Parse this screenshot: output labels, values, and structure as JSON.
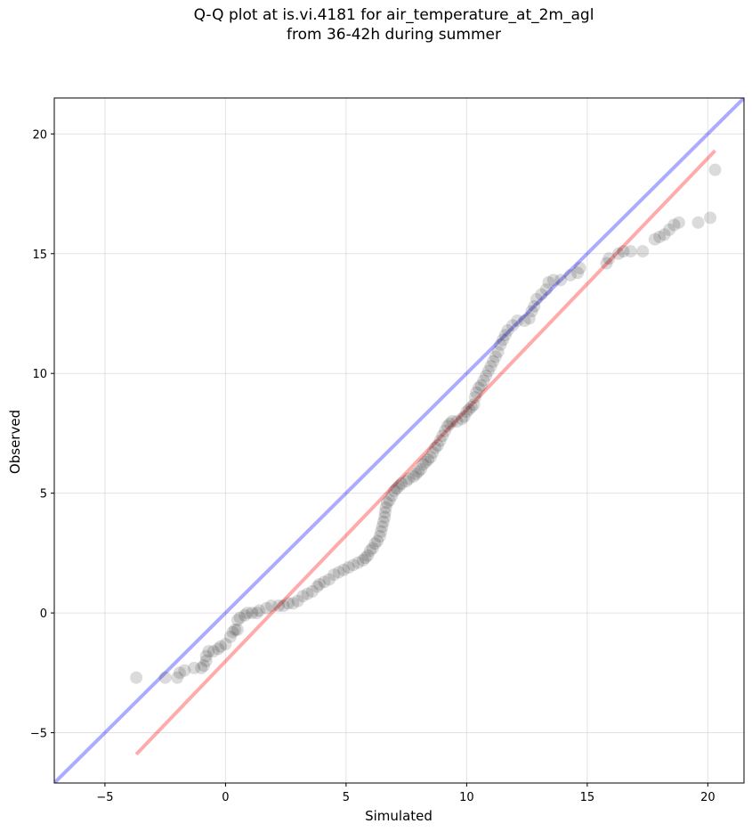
{
  "chart_data": {
    "type": "scatter",
    "title_line1": "Q-Q plot at is.vi.4181 for air_temperature_at_2m_agl",
    "title_line2": "from 36-42h during summer",
    "xlabel": "Simulated",
    "ylabel": "Observed",
    "xlim": [
      -7.1,
      21.5
    ],
    "ylim": [
      -7.1,
      21.5
    ],
    "xticks": [
      -5,
      0,
      5,
      10,
      15,
      20
    ],
    "yticks": [
      -5,
      0,
      5,
      10,
      15,
      20
    ],
    "xtick_labels": [
      "−5",
      "0",
      "5",
      "10",
      "15",
      "20"
    ],
    "ytick_labels": [
      "−5",
      "0",
      "5",
      "10",
      "15",
      "20"
    ],
    "grid": true,
    "identity_line_color": "#0000ff",
    "fit_line_color": "#ff0000",
    "point_color": "#000000",
    "fit_line": {
      "x": [
        -3.7,
        20.3
      ],
      "y": [
        -5.9,
        19.3
      ]
    },
    "points": [
      [
        -3.7,
        -2.7
      ],
      [
        -2.5,
        -2.7
      ],
      [
        -2.0,
        -2.7
      ],
      [
        -1.9,
        -2.5
      ],
      [
        -1.7,
        -2.4
      ],
      [
        -1.3,
        -2.3
      ],
      [
        -1.0,
        -2.3
      ],
      [
        -0.9,
        -2.2
      ],
      [
        -0.8,
        -2.0
      ],
      [
        -0.8,
        -1.8
      ],
      [
        -0.7,
        -1.6
      ],
      [
        -0.5,
        -1.6
      ],
      [
        -0.3,
        -1.5
      ],
      [
        -0.2,
        -1.4
      ],
      [
        0.0,
        -1.3
      ],
      [
        0.2,
        -1.0
      ],
      [
        0.3,
        -0.8
      ],
      [
        0.4,
        -0.7
      ],
      [
        0.5,
        -0.7
      ],
      [
        0.5,
        -0.3
      ],
      [
        0.6,
        -0.2
      ],
      [
        0.8,
        -0.1
      ],
      [
        0.9,
        0.0
      ],
      [
        1.1,
        0.0
      ],
      [
        1.3,
        0.0
      ],
      [
        1.4,
        0.1
      ],
      [
        1.7,
        0.2
      ],
      [
        1.9,
        0.3
      ],
      [
        2.2,
        0.3
      ],
      [
        2.4,
        0.3
      ],
      [
        2.6,
        0.4
      ],
      [
        2.8,
        0.4
      ],
      [
        3.0,
        0.5
      ],
      [
        3.2,
        0.7
      ],
      [
        3.4,
        0.8
      ],
      [
        3.6,
        0.9
      ],
      [
        3.8,
        1.1
      ],
      [
        3.9,
        1.2
      ],
      [
        4.1,
        1.3
      ],
      [
        4.3,
        1.4
      ],
      [
        4.5,
        1.6
      ],
      [
        4.7,
        1.7
      ],
      [
        4.9,
        1.8
      ],
      [
        5.1,
        1.9
      ],
      [
        5.3,
        2.0
      ],
      [
        5.5,
        2.1
      ],
      [
        5.7,
        2.2
      ],
      [
        5.8,
        2.3
      ],
      [
        5.9,
        2.4
      ],
      [
        6.0,
        2.6
      ],
      [
        6.1,
        2.7
      ],
      [
        6.2,
        2.9
      ],
      [
        6.3,
        3.0
      ],
      [
        6.4,
        3.2
      ],
      [
        6.45,
        3.4
      ],
      [
        6.5,
        3.6
      ],
      [
        6.55,
        3.8
      ],
      [
        6.6,
        4.0
      ],
      [
        6.62,
        4.2
      ],
      [
        6.65,
        4.4
      ],
      [
        6.7,
        4.6
      ],
      [
        6.8,
        4.7
      ],
      [
        6.9,
        4.9
      ],
      [
        7.0,
        5.1
      ],
      [
        7.1,
        5.2
      ],
      [
        7.2,
        5.3
      ],
      [
        7.3,
        5.4
      ],
      [
        7.5,
        5.5
      ],
      [
        7.6,
        5.6
      ],
      [
        7.8,
        5.7
      ],
      [
        7.9,
        5.8
      ],
      [
        8.0,
        5.9
      ],
      [
        8.1,
        6.0
      ],
      [
        8.2,
        6.2
      ],
      [
        8.3,
        6.3
      ],
      [
        8.4,
        6.4
      ],
      [
        8.5,
        6.5
      ],
      [
        8.6,
        6.7
      ],
      [
        8.7,
        6.9
      ],
      [
        8.8,
        7.0
      ],
      [
        8.9,
        7.2
      ],
      [
        9.0,
        7.4
      ],
      [
        9.1,
        7.6
      ],
      [
        9.2,
        7.8
      ],
      [
        9.3,
        7.9
      ],
      [
        9.4,
        8.0
      ],
      [
        9.6,
        8.0
      ],
      [
        9.8,
        8.1
      ],
      [
        9.9,
        8.2
      ],
      [
        10.0,
        8.4
      ],
      [
        10.1,
        8.5
      ],
      [
        10.2,
        8.6
      ],
      [
        10.3,
        8.7
      ],
      [
        10.35,
        9.0
      ],
      [
        10.4,
        9.2
      ],
      [
        10.5,
        9.4
      ],
      [
        10.6,
        9.5
      ],
      [
        10.7,
        9.7
      ],
      [
        10.8,
        9.9
      ],
      [
        10.9,
        10.1
      ],
      [
        11.0,
        10.3
      ],
      [
        11.1,
        10.5
      ],
      [
        11.2,
        10.7
      ],
      [
        11.3,
        10.9
      ],
      [
        11.4,
        11.2
      ],
      [
        11.5,
        11.4
      ],
      [
        11.6,
        11.6
      ],
      [
        11.7,
        11.8
      ],
      [
        11.9,
        12.0
      ],
      [
        12.1,
        12.2
      ],
      [
        12.4,
        12.2
      ],
      [
        12.6,
        12.3
      ],
      [
        12.7,
        12.6
      ],
      [
        12.8,
        12.8
      ],
      [
        12.9,
        13.1
      ],
      [
        13.1,
        13.3
      ],
      [
        13.3,
        13.5
      ],
      [
        13.4,
        13.8
      ],
      [
        13.6,
        13.9
      ],
      [
        13.9,
        13.9
      ],
      [
        14.3,
        14.1
      ],
      [
        14.6,
        14.2
      ],
      [
        14.7,
        14.4
      ],
      [
        15.8,
        14.6
      ],
      [
        15.9,
        14.8
      ],
      [
        16.3,
        15.0
      ],
      [
        16.5,
        15.1
      ],
      [
        16.8,
        15.1
      ],
      [
        17.3,
        15.1
      ],
      [
        17.8,
        15.6
      ],
      [
        18.0,
        15.7
      ],
      [
        18.2,
        15.8
      ],
      [
        18.4,
        16.0
      ],
      [
        18.6,
        16.2
      ],
      [
        18.8,
        16.3
      ],
      [
        19.6,
        16.3
      ],
      [
        20.1,
        16.5
      ],
      [
        20.3,
        18.5
      ]
    ]
  }
}
